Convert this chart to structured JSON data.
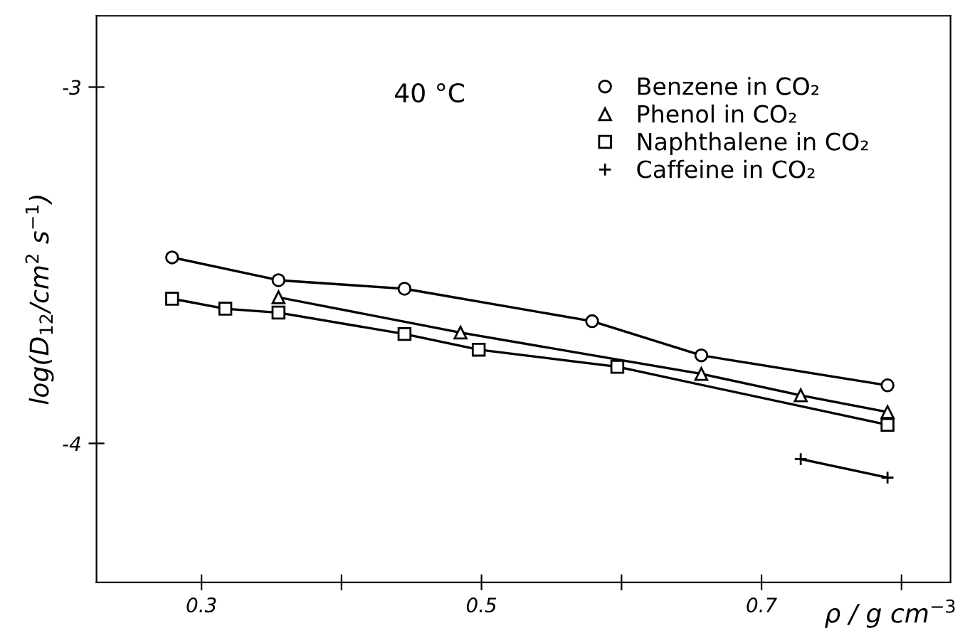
{
  "chart_data": {
    "type": "line",
    "xlabel": "ρ / g cm$^{−3}$",
    "ylabel": "log(D$_{12}$/cm$^{2}$ s$^{−1}$)",
    "annotations": [
      "40 °C"
    ],
    "xlim": [
      0.225,
      0.835
    ],
    "ylim": [
      -4.39,
      -2.8
    ],
    "xticks": [
      {
        "value": 0.3,
        "label": "0.3"
      },
      {
        "value": 0.4,
        "label": null
      },
      {
        "value": 0.5,
        "label": "0.5"
      },
      {
        "value": 0.6,
        "label": null
      },
      {
        "value": 0.7,
        "label": "0.7"
      },
      {
        "value": 0.8,
        "label": null
      }
    ],
    "yticks": [
      {
        "value": -3,
        "label": "-3"
      },
      {
        "value": -4,
        "label": "-4"
      }
    ],
    "grid": false,
    "legend": "top right",
    "series": [
      {
        "name": "Benzene in CO₂",
        "color": "#000000",
        "marker": "circle",
        "x": [
          0.279,
          0.355,
          0.445,
          0.579,
          0.657,
          0.79
        ],
        "values": [
          -3.478,
          -3.542,
          -3.566,
          -3.657,
          -3.753,
          -3.837
        ]
      },
      {
        "name": "Phenol in CO₂",
        "color": "#000000",
        "marker": "triangle",
        "x": [
          0.355,
          0.485,
          0.657,
          0.728,
          0.79
        ],
        "values": [
          -3.59,
          -3.689,
          -3.805,
          -3.865,
          -3.912
        ]
      },
      {
        "name": "Naphthalene in CO₂",
        "color": "#000000",
        "marker": "square",
        "x": [
          0.279,
          0.317,
          0.355,
          0.445,
          0.498,
          0.597,
          0.79
        ],
        "values": [
          -3.594,
          -3.622,
          -3.633,
          -3.693,
          -3.737,
          -3.785,
          -3.948
        ]
      },
      {
        "name": "Caffeine in CO₂",
        "color": "#000000",
        "marker": "cross",
        "x": [
          0.728,
          0.79
        ],
        "values": [
          -4.044,
          -4.096
        ]
      }
    ]
  }
}
